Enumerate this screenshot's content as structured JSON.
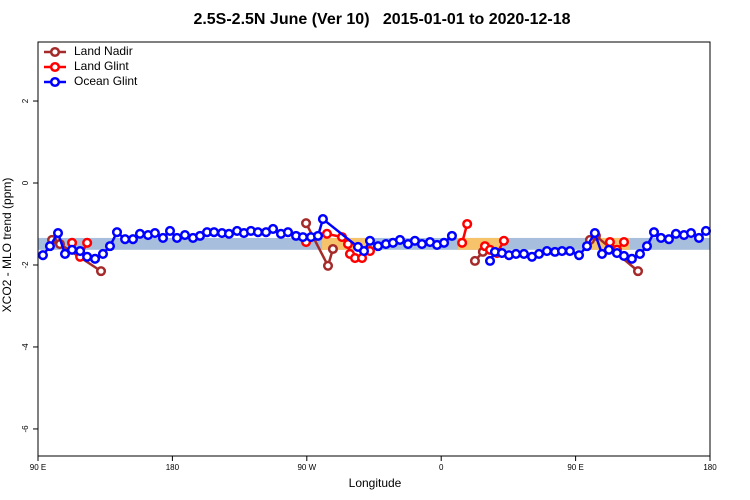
{
  "chart_data": {
    "type": "line",
    "title": "2.5S-2.5N June (Ver 10)   2015-01-01 to 2020-12-18",
    "xlabel": "Longitude",
    "ylabel": "XCO2 - MLO trend (ppm)",
    "xlim": [
      90,
      540
    ],
    "ylim": [
      -6.66,
      3.44
    ],
    "xticks": [
      {
        "value": 90,
        "label": "90 E"
      },
      {
        "value": 180,
        "label": "180"
      },
      {
        "value": 270,
        "label": "90 W"
      },
      {
        "value": 360,
        "label": "0"
      },
      {
        "value": 450,
        "label": "90 E"
      },
      {
        "value": 540,
        "label": "180"
      }
    ],
    "yticks": [
      2,
      0,
      -2,
      -4,
      -6
    ],
    "legend": "top-left",
    "bands": [
      {
        "x": [
          90,
          540
        ],
        "y": [
          -1.63,
          -1.34
        ],
        "color": "#a7bfdc"
      },
      {
        "x": [
          280.2,
          313.7
        ],
        "y": [
          -1.63,
          -1.34
        ],
        "color": "#f6c36b"
      },
      {
        "x": [
          371.3,
          399.4
        ],
        "y": [
          -1.63,
          -1.34
        ],
        "color": "#f6c36b"
      },
      {
        "x": [
          459.6,
          486.4
        ],
        "y": [
          -1.63,
          -1.34
        ],
        "color": "#f6c36b"
      }
    ],
    "series": [
      {
        "name": "Land Nadir",
        "color": "#a52a2a",
        "x": [
          99.4,
          104.7,
          132.2,
          200,
          269.5,
          284.2,
          287.5,
          330,
          382.6,
          387.9,
          420,
          459.6,
          463.6,
          491.8
        ],
        "values": [
          -1.39,
          -1.49,
          -2.15,
          null,
          -0.98,
          -2.02,
          -1.61,
          null,
          -1.9,
          -1.68,
          null,
          -1.39,
          -1.29,
          -2.15
        ]
      },
      {
        "name": "Land Glint",
        "color": "#ff0000",
        "x": [
          112.8,
          118.2,
          122.9,
          200,
          269.5,
          283.5,
          293.6,
          297.6,
          298.9,
          302.3,
          307.0,
          312.3,
          340,
          374.0,
          377.4,
          383,
          389.3,
          392.7,
          397.4,
          402.0,
          440,
          473.0,
          477.7,
          482.4
        ],
        "values": [
          -1.46,
          -1.8,
          -1.46,
          null,
          -1.44,
          -1.24,
          -1.32,
          -1.49,
          -1.73,
          -1.83,
          -1.83,
          -1.66,
          null,
          -1.46,
          -1.0,
          null,
          -1.54,
          -1.63,
          -1.71,
          -1.41,
          null,
          -1.44,
          -1.63,
          -1.44
        ]
      },
      {
        "name": "Ocean Glint",
        "color": "#0000ff",
        "x": [
          93.3,
          98.0,
          103.4,
          108.1,
          112.8,
          118.2,
          122.9,
          128.2,
          133.5,
          138.2,
          142.9,
          148.3,
          153.6,
          158.3,
          163.7,
          168.3,
          173.7,
          178.4,
          183.1,
          188.4,
          193.8,
          198.5,
          203.2,
          207.9,
          213.2,
          217.9,
          223.3,
          227.9,
          232.6,
          237.3,
          242.7,
          247.4,
          252.7,
          257.4,
          262.8,
          267.4,
          272.8,
          277.5,
          280.8,
          304.3,
          308.3,
          312.3,
          317.7,
          323.0,
          327.7,
          332.4,
          337.8,
          342.4,
          347.1,
          352.5,
          357.2,
          361.9,
          367.2,
          380,
          392.7,
          396.0,
          400.7,
          405.4,
          410.1,
          415.4,
          420.8,
          425.5,
          430.8,
          436.2,
          440.9,
          446.2,
          452.3,
          457.6,
          462.9,
          467.7,
          472.3,
          477.7,
          482.4,
          487.7,
          493.1,
          497.8,
          502.5,
          507.2,
          512.5,
          517.2,
          522.6,
          527.3,
          532.6,
          537.3
        ],
        "values": [
          -1.76,
          -1.54,
          -1.22,
          -1.73,
          -1.63,
          -1.66,
          -1.8,
          -1.85,
          -1.73,
          -1.54,
          -1.2,
          -1.37,
          -1.37,
          -1.24,
          -1.27,
          -1.22,
          -1.34,
          -1.17,
          -1.34,
          -1.27,
          -1.34,
          -1.29,
          -1.2,
          -1.2,
          -1.22,
          -1.24,
          -1.17,
          -1.22,
          -1.17,
          -1.2,
          -1.2,
          -1.12,
          -1.24,
          -1.2,
          -1.29,
          -1.32,
          -1.32,
          -1.29,
          -0.88,
          -1.56,
          -1.66,
          -1.41,
          -1.54,
          -1.49,
          -1.46,
          -1.39,
          -1.49,
          -1.41,
          -1.49,
          -1.44,
          -1.51,
          -1.46,
          -1.29,
          null,
          -1.9,
          -1.68,
          -1.71,
          -1.76,
          -1.73,
          -1.73,
          -1.8,
          -1.73,
          -1.66,
          -1.68,
          -1.66,
          -1.66,
          -1.76,
          -1.54,
          -1.22,
          -1.73,
          -1.63,
          -1.71,
          -1.78,
          -1.85,
          -1.73,
          -1.54,
          -1.2,
          -1.34,
          -1.37,
          -1.24,
          -1.27,
          -1.22,
          -1.34,
          -1.17
        ]
      }
    ]
  }
}
